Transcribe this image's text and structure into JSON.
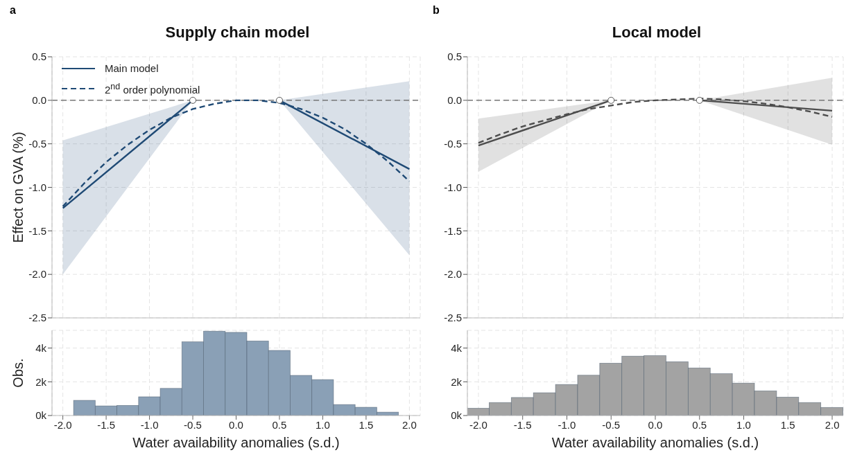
{
  "chart_data": [
    {
      "type": "line",
      "title": "Supply chain model",
      "ylabel": "Effect on GVA (%)",
      "annotations": [
        "a"
      ],
      "xlim": [
        -2.125,
        2.125
      ],
      "xticks": [
        -2,
        -1.5,
        -1,
        -0.5,
        0,
        0.5,
        1,
        1.5,
        2
      ],
      "ylim": [
        -2.5,
        0.5
      ],
      "yticks": [
        {
          "value": -2.5,
          "label": "-2.5"
        },
        {
          "value": -2,
          "label": "-2.0"
        },
        {
          "value": -1.5,
          "label": "-1.5"
        },
        {
          "value": -1,
          "label": "-1.0"
        },
        {
          "value": -0.5,
          "label": "-0.5"
        },
        {
          "value": 0,
          "label": "0.0"
        },
        {
          "value": 0.5,
          "label": "0.5"
        }
      ],
      "tick_labels": "y",
      "grid": true,
      "legend": "top left",
      "ref_lines": [
        {
          "axis": "y",
          "value": 0,
          "color": "#777777",
          "line_style": "dashed"
        }
      ],
      "series": [
        {
          "name": "Main model",
          "type": "line",
          "color": "#1f4a75",
          "line_style": "solid",
          "x": [
            -2,
            -0.5,
            0,
            0.5,
            2
          ],
          "values": [
            -1.24,
            0,
            null,
            0,
            -0.79
          ],
          "lower": [
            -2.0,
            0,
            null,
            0,
            -1.78
          ],
          "upper": [
            -0.46,
            0,
            null,
            0,
            0.22
          ]
        },
        {
          "name": "2$^{nd}$ order polynomial",
          "type": "line",
          "color": "#1f4a75",
          "line_style": "dashed",
          "x": [
            -2,
            -1.75,
            -1.5,
            -1.25,
            -1,
            -0.75,
            -0.5,
            -0.25,
            0,
            0.25,
            0.5,
            0.75,
            1,
            1.25,
            1.5,
            1.75,
            2
          ],
          "values": [
            -1.22,
            -0.95,
            -0.71,
            -0.51,
            -0.34,
            -0.2,
            -0.1,
            -0.04,
            0,
            0,
            -0.03,
            -0.1,
            -0.2,
            -0.33,
            -0.5,
            -0.7,
            -0.93
          ]
        },
        {
          "type": "scatter",
          "marker": "circle",
          "color": "#ffffff",
          "x": [
            -0.5,
            0.5
          ],
          "values": [
            0,
            0
          ]
        }
      ]
    },
    {
      "type": "histogram",
      "xlabel": "Water availability anomalies (s.d.)",
      "ylabel": "Obs.",
      "color": "#8aa0b6",
      "bins": [
        -1.875,
        -1.625,
        -1.375,
        -1.125,
        -0.875,
        -0.625,
        -0.375,
        -0.125,
        0.125,
        0.375,
        0.625,
        0.875,
        1.125,
        1.375,
        1.625,
        1.875
      ],
      "values": [
        900,
        570,
        600,
        1110,
        1610,
        4370,
        5000,
        4930,
        4420,
        3860,
        2380,
        2130,
        650,
        490,
        200
      ],
      "xlim": [
        -2.125,
        2.125
      ],
      "xticks": [
        {
          "value": -2,
          "label": "-2.0"
        },
        {
          "value": -1.5,
          "label": "-1.5"
        },
        {
          "value": -1,
          "label": "-1.0"
        },
        {
          "value": -0.5,
          "label": "-0.5"
        },
        {
          "value": 0,
          "label": "0.0"
        },
        {
          "value": 0.5,
          "label": "0.5"
        },
        {
          "value": 1,
          "label": "1.0"
        },
        {
          "value": 1.5,
          "label": "1.5"
        },
        {
          "value": 2,
          "label": "2.0"
        }
      ],
      "ylim": [
        0,
        5050
      ],
      "yticks": [
        {
          "value": 0,
          "label": "0k"
        },
        {
          "value": 2000,
          "label": "2k"
        },
        {
          "value": 4000,
          "label": "4k"
        }
      ],
      "grid": true
    },
    {
      "type": "line",
      "title": "Local model",
      "annotations": [
        "b"
      ],
      "xlim": [
        -2.125,
        2.125
      ],
      "xticks": [
        -2,
        -1.5,
        -1,
        -0.5,
        0,
        0.5,
        1,
        1.5,
        2
      ],
      "ylim": [
        -2.5,
        0.5
      ],
      "yticks": [
        {
          "value": -2.5,
          "label": "-2.5"
        },
        {
          "value": -2,
          "label": "-2.0"
        },
        {
          "value": -1.5,
          "label": "-1.5"
        },
        {
          "value": -1,
          "label": "-1.0"
        },
        {
          "value": -0.5,
          "label": "-0.5"
        },
        {
          "value": 0,
          "label": "0.0"
        },
        {
          "value": 0.5,
          "label": "0.5"
        }
      ],
      "tick_labels": "y",
      "grid": true,
      "ref_lines": [
        {
          "axis": "y",
          "value": 0,
          "color": "#777777",
          "line_style": "dashed"
        }
      ],
      "series": [
        {
          "type": "line",
          "color": "#4d4d4d",
          "line_style": "solid",
          "x": [
            -2,
            -0.5,
            0,
            0.5,
            2
          ],
          "values": [
            -0.52,
            0,
            null,
            0,
            -0.12
          ],
          "lower": [
            -0.82,
            0,
            null,
            0,
            -0.51
          ],
          "upper": [
            -0.21,
            0,
            null,
            0,
            0.26
          ]
        },
        {
          "type": "line",
          "color": "#4d4d4d",
          "line_style": "dashed",
          "x": [
            -2,
            -1.75,
            -1.5,
            -1.25,
            -1,
            -0.75,
            -0.5,
            -0.25,
            0,
            0.25,
            0.5,
            0.75,
            1,
            1.25,
            1.5,
            1.75,
            2
          ],
          "values": [
            -0.49,
            -0.39,
            -0.3,
            -0.23,
            -0.16,
            -0.1,
            -0.06,
            -0.02,
            0,
            0.01,
            0.02,
            0.01,
            -0.01,
            -0.04,
            -0.08,
            -0.13,
            -0.19
          ]
        },
        {
          "type": "scatter",
          "marker": "circle",
          "color": "#ffffff",
          "x": [
            -0.5,
            0.5
          ],
          "values": [
            0,
            0
          ]
        }
      ]
    },
    {
      "type": "histogram",
      "xlabel": "Water availability anomalies (s.d.)",
      "color": "#a3a3a3",
      "bins": [
        -2.125,
        -1.875,
        -1.625,
        -1.375,
        -1.125,
        -0.875,
        -0.625,
        -0.375,
        -0.125,
        0.125,
        0.375,
        0.625,
        0.875,
        1.125,
        1.375,
        1.625,
        1.875,
        2.125
      ],
      "values": [
        430,
        770,
        1070,
        1350,
        1840,
        2390,
        3100,
        3520,
        3550,
        3190,
        2820,
        2480,
        1920,
        1460,
        1090,
        770,
        480
      ],
      "xlim": [
        -2.125,
        2.125
      ],
      "xticks": [
        {
          "value": -2,
          "label": "-2.0"
        },
        {
          "value": -1.5,
          "label": "-1.5"
        },
        {
          "value": -1,
          "label": "-1.0"
        },
        {
          "value": -0.5,
          "label": "-0.5"
        },
        {
          "value": 0,
          "label": "0.0"
        },
        {
          "value": 0.5,
          "label": "0.5"
        },
        {
          "value": 1,
          "label": "1.0"
        },
        {
          "value": 1.5,
          "label": "1.5"
        },
        {
          "value": 2,
          "label": "2.0"
        }
      ],
      "ylim": [
        0,
        5050
      ],
      "yticks": [
        {
          "value": 0,
          "label": "0k"
        },
        {
          "value": 2000,
          "label": "2k"
        },
        {
          "value": 4000,
          "label": "4k"
        }
      ],
      "grid": true
    }
  ]
}
